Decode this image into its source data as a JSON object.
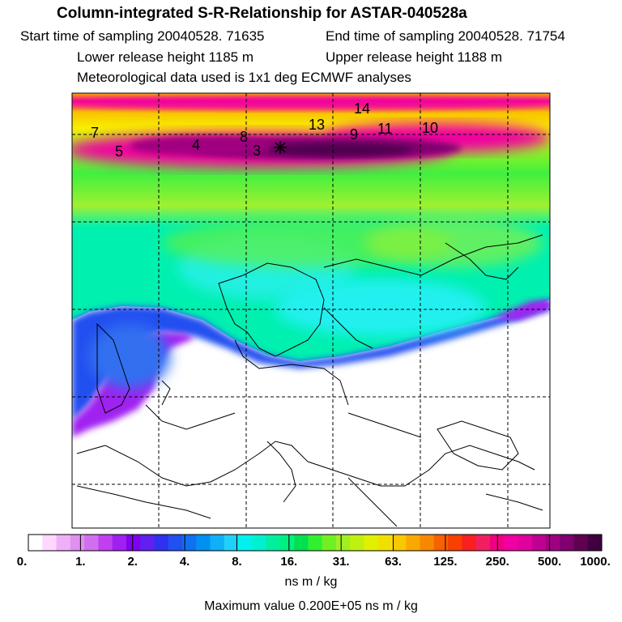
{
  "header": {
    "title": "Column-integrated S-R-Relationship for ASTAR-040528a",
    "start_time": "Start time of sampling 20040528. 71635",
    "end_time": "End time of sampling 20040528. 71754",
    "lower_release": "Lower release height 1185 m",
    "upper_release": "Upper release height 1188 m",
    "met_data": "Meteorological data used is 1x1 deg ECMWF analyses"
  },
  "map": {
    "point_labels": [
      "7",
      "5",
      "4",
      "8",
      "3",
      "13",
      "9",
      "11",
      "10",
      "14"
    ]
  },
  "colorbar": {
    "tick_labels": [
      "0.",
      "1.",
      "2.",
      "4.",
      "8.",
      "16.",
      "31.",
      "63.",
      "125.",
      "250.",
      "500.",
      "1000."
    ],
    "colors": [
      "#ffffff",
      "#ffd8ff",
      "#f0b0f8",
      "#e090f0",
      "#d070ee",
      "#c040f0",
      "#a020f0",
      "#8000f0",
      "#6020f0",
      "#3030f0",
      "#2050f0",
      "#1070f0",
      "#0090f0",
      "#10b0f8",
      "#20d0f8",
      "#00f0f0",
      "#00f0d0",
      "#00f0a0",
      "#00f080",
      "#00e050",
      "#30f030",
      "#70f020",
      "#a0f020",
      "#c0f010",
      "#e0f000",
      "#f0e000",
      "#f8c800",
      "#f8a800",
      "#f88800",
      "#f86000",
      "#f84000",
      "#f82020",
      "#f02060",
      "#f00080",
      "#f000a0",
      "#e000a0",
      "#c00090",
      "#a00080",
      "#800070",
      "#600050",
      "#400040"
    ]
  },
  "units": "ns m / kg",
  "max_value": "Maximum value  0.200E+05 ns m / kg"
}
